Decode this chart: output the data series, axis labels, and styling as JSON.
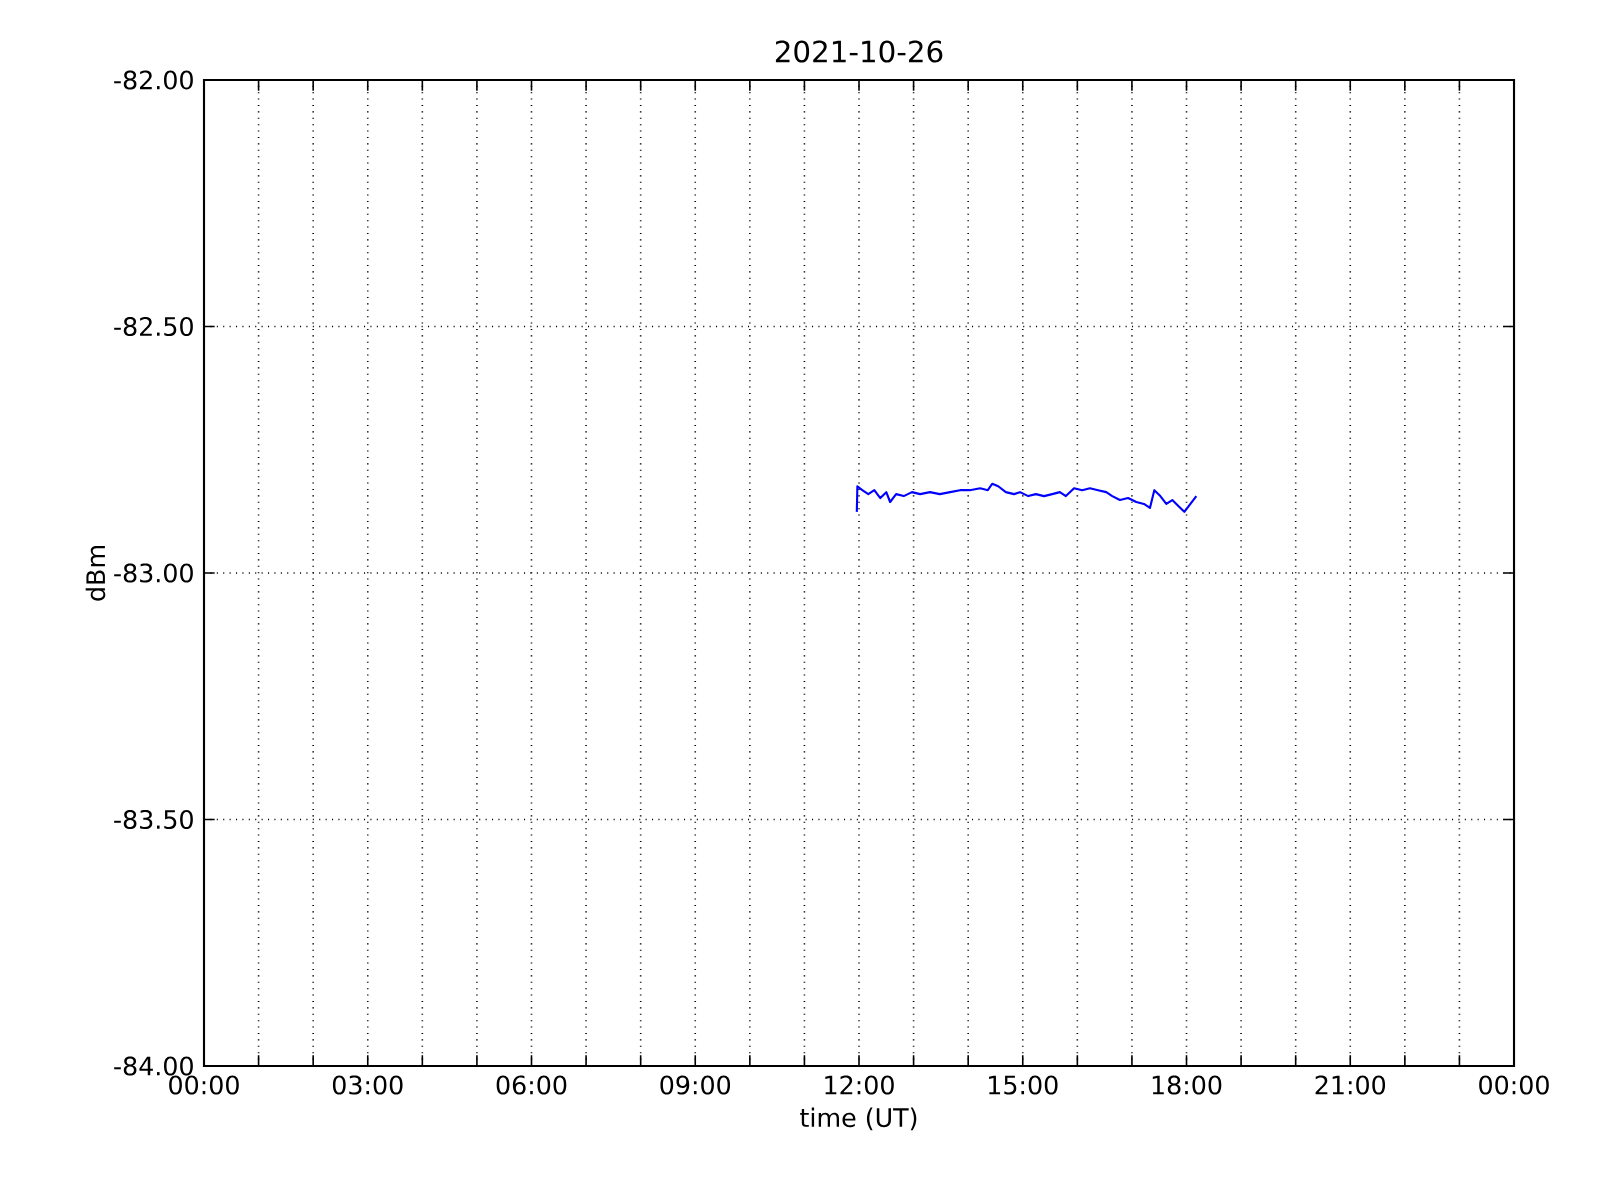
{
  "chart_data": {
    "type": "line",
    "title": "2021-10-26",
    "xlabel": "time (UT)",
    "ylabel": "dBm",
    "xlim": [
      0,
      24
    ],
    "xticks": [
      {
        "value": 0,
        "label": "00:00"
      },
      {
        "value": 1,
        "label": null
      },
      {
        "value": 2,
        "label": null
      },
      {
        "value": 3,
        "label": "03:00"
      },
      {
        "value": 4,
        "label": null
      },
      {
        "value": 5,
        "label": null
      },
      {
        "value": 6,
        "label": "06:00"
      },
      {
        "value": 7,
        "label": null
      },
      {
        "value": 8,
        "label": null
      },
      {
        "value": 9,
        "label": "09:00"
      },
      {
        "value": 10,
        "label": null
      },
      {
        "value": 11,
        "label": null
      },
      {
        "value": 12,
        "label": "12:00"
      },
      {
        "value": 13,
        "label": null
      },
      {
        "value": 14,
        "label": null
      },
      {
        "value": 15,
        "label": "15:00"
      },
      {
        "value": 16,
        "label": null
      },
      {
        "value": 17,
        "label": null
      },
      {
        "value": 18,
        "label": "18:00"
      },
      {
        "value": 19,
        "label": null
      },
      {
        "value": 20,
        "label": null
      },
      {
        "value": 21,
        "label": "21:00"
      },
      {
        "value": 22,
        "label": null
      },
      {
        "value": 23,
        "label": null
      },
      {
        "value": 24,
        "label": "00:00"
      }
    ],
    "ylim": [
      -84,
      -82
    ],
    "yticks": [
      {
        "value": -84,
        "label": "-84.00"
      },
      {
        "value": -83.5,
        "label": "-83.50"
      },
      {
        "value": -83,
        "label": "-83.00"
      },
      {
        "value": -82.5,
        "label": "-82.50"
      },
      {
        "value": -82,
        "label": "-82.00"
      }
    ],
    "grid": true,
    "marker": "none",
    "line_style": "solid",
    "series": [
      {
        "color": "#0000ff",
        "x": [
          11.96,
          11.97,
          12.06,
          12.17,
          12.28,
          12.39,
          12.5,
          12.57,
          12.68,
          12.82,
          12.97,
          13.12,
          13.3,
          13.48,
          13.67,
          13.85,
          14.03,
          14.22,
          14.36,
          14.44,
          14.55,
          14.69,
          14.84,
          14.95,
          15.1,
          15.24,
          15.39,
          15.54,
          15.68,
          15.79,
          15.94,
          16.09,
          16.23,
          16.38,
          16.53,
          16.64,
          16.78,
          16.93,
          17.08,
          17.22,
          17.33,
          17.41,
          17.52,
          17.63,
          17.74,
          17.85,
          17.96,
          18.07,
          18.18
        ],
        "values": [
          -82.876,
          -82.824,
          -82.832,
          -82.84,
          -82.832,
          -82.848,
          -82.836,
          -82.856,
          -82.84,
          -82.844,
          -82.836,
          -82.84,
          -82.836,
          -82.84,
          -82.836,
          -82.832,
          -82.832,
          -82.828,
          -82.832,
          -82.819,
          -82.824,
          -82.836,
          -82.84,
          -82.836,
          -82.844,
          -82.84,
          -82.844,
          -82.84,
          -82.836,
          -82.844,
          -82.828,
          -82.832,
          -82.828,
          -82.832,
          -82.836,
          -82.844,
          -82.852,
          -82.848,
          -82.856,
          -82.86,
          -82.868,
          -82.832,
          -82.844,
          -82.86,
          -82.852,
          -82.864,
          -82.876,
          -82.86,
          -82.844
        ]
      }
    ]
  }
}
